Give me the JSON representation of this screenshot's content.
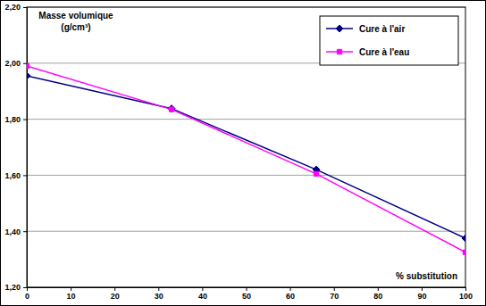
{
  "chart_data": {
    "type": "line",
    "y_label": "Masse volumique (g/cm³)",
    "x_label": "% substitution",
    "x": [
      0,
      33,
      66,
      100
    ],
    "series": [
      {
        "name": "Cure à l'air",
        "color": "#000080",
        "marker": "diamond",
        "values": [
          1.955,
          1.838,
          1.62,
          1.375
        ]
      },
      {
        "name": "Cure à l'eau",
        "color": "#ff00ff",
        "marker": "square",
        "values": [
          1.99,
          1.835,
          1.605,
          1.325
        ]
      }
    ],
    "xlim": [
      0,
      100
    ],
    "xticks": [
      0,
      10,
      20,
      30,
      40,
      50,
      60,
      70,
      80,
      90,
      100
    ],
    "ylim": [
      1.2,
      2.2
    ],
    "yticks": [
      {
        "value": 1.2,
        "label": "1,20"
      },
      {
        "value": 1.4,
        "label": "1,40"
      },
      {
        "value": 1.6,
        "label": "1,60"
      },
      {
        "value": 1.8,
        "label": "1,80"
      },
      {
        "value": 2.0,
        "label": "2,00"
      },
      {
        "value": 2.2,
        "label": "2,20"
      }
    ],
    "grid": true,
    "legend": "top-right"
  }
}
